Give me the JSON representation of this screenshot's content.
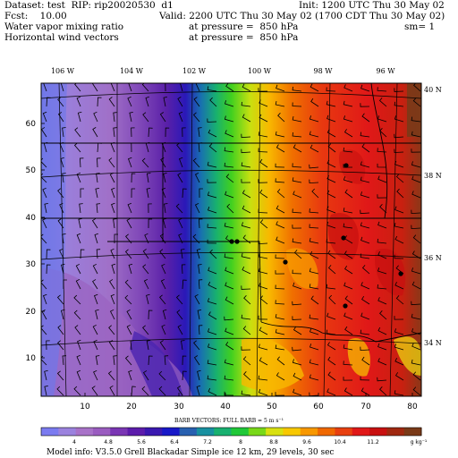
{
  "header": {
    "dataset": "Dataset: test  RIP: rip20020530  d1",
    "init": "Init: 1200 UTC Thu 30 May 02",
    "fcst": "Fcst:    10.00",
    "valid": "Valid: 2200 UTC Thu 30 May 02 (1700 CDT Thu 30 May 02)",
    "field1": "Water vapor mixing ratio",
    "field1_level": "at pressure =  850 hPa",
    "sm": "sm= 1",
    "field2": "Horizontal wind vectors",
    "field2_level": "at pressure =  850 hPa"
  },
  "map": {
    "lon_labels": [
      "106 W",
      "104 W",
      "102 W",
      "100 W",
      "98 W",
      "96 W"
    ],
    "lat_labels": [
      "40 N",
      "38 N",
      "36 N",
      "34 N"
    ],
    "x_ticks": [
      "10",
      "20",
      "30",
      "40",
      "50",
      "60",
      "70",
      "80"
    ],
    "y_ticks": [
      "10",
      "20",
      "30",
      "40",
      "50",
      "60"
    ],
    "stations": 7
  },
  "colorbar": {
    "title": "BARB VECTORS:  FULL BARB = 5 m s⁻¹",
    "labels": [
      "4",
      "4.8",
      "5.6",
      "6.4",
      "7.2",
      "8",
      "8.8",
      "9.6",
      "10.4",
      "11.2"
    ],
    "units": "g kg⁻¹",
    "colors": [
      "#7b7bf0",
      "#9b82de",
      "#a872c8",
      "#9a5cc0",
      "#7a36b4",
      "#5c1cab",
      "#3a18b0",
      "#1818c8",
      "#2860b0",
      "#1890a0",
      "#18b070",
      "#20c838",
      "#78d818",
      "#d8e010",
      "#f8c800",
      "#f89800",
      "#f06800",
      "#e84010",
      "#e01818",
      "#c81010",
      "#a02810",
      "#7a3a18"
    ]
  },
  "footer": {
    "model_info": "Model info: V3.5.0  Grell     Blackadar  Simple ice    12 km,  29 levels,   30 sec"
  }
}
